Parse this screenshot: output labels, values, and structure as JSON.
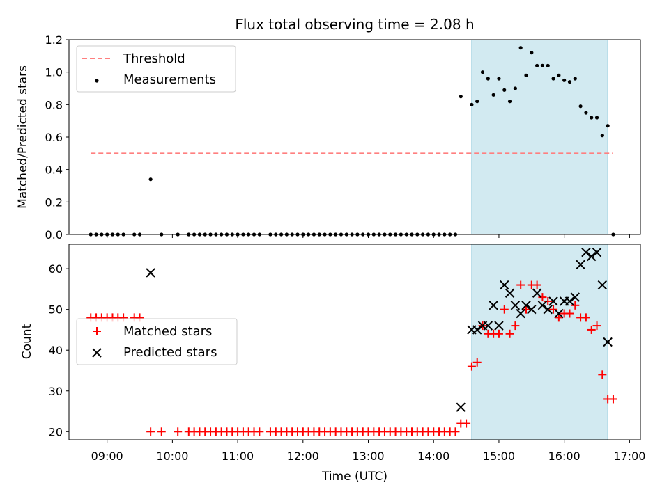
{
  "figure": {
    "title": "Flux total observing time = 2.08 h"
  },
  "chart_data": [
    {
      "type": "scatter",
      "ylabel": "Matched/Predicted stars",
      "xlabel": "",
      "ylim": [
        0,
        1.2
      ],
      "yticks": [
        0.0,
        0.2,
        0.4,
        0.6,
        0.8,
        1.0,
        1.2
      ],
      "xlim": [
        "08:25",
        "17:10"
      ],
      "xticks": [
        "09:00",
        "10:00",
        "11:00",
        "12:00",
        "13:00",
        "14:00",
        "15:00",
        "16:00",
        "17:00"
      ],
      "grid": false,
      "legend_position": "upper-left",
      "shaded_region": {
        "x": [
          "14:35",
          "16:40"
        ],
        "color": "#add8e6"
      },
      "series": [
        {
          "name": "Threshold",
          "style": "dashed-line",
          "color": "#ff7f7f",
          "points": [
            [
              "08:45",
              0.5
            ],
            [
              "16:45",
              0.5
            ]
          ]
        },
        {
          "name": "Measurements",
          "style": "dot",
          "color": "#000000",
          "points": [
            [
              "08:45",
              0.0
            ],
            [
              "08:50",
              0.0
            ],
            [
              "08:55",
              0.0
            ],
            [
              "09:00",
              0.0
            ],
            [
              "09:05",
              0.0
            ],
            [
              "09:10",
              0.0
            ],
            [
              "09:15",
              0.0
            ],
            [
              "09:25",
              0.0
            ],
            [
              "09:30",
              0.0
            ],
            [
              "09:40",
              0.34
            ],
            [
              "09:50",
              0.0
            ],
            [
              "10:05",
              0.0
            ],
            [
              "10:15",
              0.0
            ],
            [
              "10:20",
              0.0
            ],
            [
              "10:25",
              0.0
            ],
            [
              "10:30",
              0.0
            ],
            [
              "10:35",
              0.0
            ],
            [
              "10:40",
              0.0
            ],
            [
              "10:45",
              0.0
            ],
            [
              "10:50",
              0.0
            ],
            [
              "10:55",
              0.0
            ],
            [
              "11:00",
              0.0
            ],
            [
              "11:05",
              0.0
            ],
            [
              "11:10",
              0.0
            ],
            [
              "11:15",
              0.0
            ],
            [
              "11:20",
              0.0
            ],
            [
              "11:30",
              0.0
            ],
            [
              "11:35",
              0.0
            ],
            [
              "11:40",
              0.0
            ],
            [
              "11:45",
              0.0
            ],
            [
              "11:50",
              0.0
            ],
            [
              "11:55",
              0.0
            ],
            [
              "12:00",
              0.0
            ],
            [
              "12:05",
              0.0
            ],
            [
              "12:10",
              0.0
            ],
            [
              "12:15",
              0.0
            ],
            [
              "12:20",
              0.0
            ],
            [
              "12:25",
              0.0
            ],
            [
              "12:30",
              0.0
            ],
            [
              "12:35",
              0.0
            ],
            [
              "12:40",
              0.0
            ],
            [
              "12:45",
              0.0
            ],
            [
              "12:50",
              0.0
            ],
            [
              "12:55",
              0.0
            ],
            [
              "13:00",
              0.0
            ],
            [
              "13:05",
              0.0
            ],
            [
              "13:10",
              0.0
            ],
            [
              "13:15",
              0.0
            ],
            [
              "13:20",
              0.0
            ],
            [
              "13:25",
              0.0
            ],
            [
              "13:30",
              0.0
            ],
            [
              "13:35",
              0.0
            ],
            [
              "13:40",
              0.0
            ],
            [
              "13:45",
              0.0
            ],
            [
              "13:50",
              0.0
            ],
            [
              "13:55",
              0.0
            ],
            [
              "14:00",
              0.0
            ],
            [
              "14:05",
              0.0
            ],
            [
              "14:10",
              0.0
            ],
            [
              "14:15",
              0.0
            ],
            [
              "14:20",
              0.0
            ],
            [
              "14:25",
              0.85
            ],
            [
              "14:35",
              0.8
            ],
            [
              "14:40",
              0.82
            ],
            [
              "14:45",
              1.0
            ],
            [
              "14:50",
              0.96
            ],
            [
              "14:55",
              0.86
            ],
            [
              "15:00",
              0.96
            ],
            [
              "15:05",
              0.89
            ],
            [
              "15:10",
              0.82
            ],
            [
              "15:15",
              0.9
            ],
            [
              "15:20",
              1.15
            ],
            [
              "15:25",
              0.98
            ],
            [
              "15:30",
              1.12
            ],
            [
              "15:35",
              1.04
            ],
            [
              "15:40",
              1.04
            ],
            [
              "15:45",
              1.04
            ],
            [
              "15:50",
              0.96
            ],
            [
              "15:55",
              0.98
            ],
            [
              "16:00",
              0.95
            ],
            [
              "16:05",
              0.94
            ],
            [
              "16:10",
              0.96
            ],
            [
              "16:15",
              0.79
            ],
            [
              "16:20",
              0.75
            ],
            [
              "16:25",
              0.72
            ],
            [
              "16:30",
              0.72
            ],
            [
              "16:35",
              0.61
            ],
            [
              "16:40",
              0.67
            ],
            [
              "16:45",
              0.0
            ]
          ]
        }
      ]
    },
    {
      "type": "scatter",
      "ylabel": "Count",
      "xlabel": "Time (UTC)",
      "ylim": [
        18,
        66
      ],
      "yticks": [
        20,
        30,
        40,
        50,
        60
      ],
      "xlim": [
        "08:25",
        "17:10"
      ],
      "xticks": [
        "09:00",
        "10:00",
        "11:00",
        "12:00",
        "13:00",
        "14:00",
        "15:00",
        "16:00",
        "17:00"
      ],
      "grid": false,
      "legend_position": "center-left",
      "shaded_region": {
        "x": [
          "14:35",
          "16:40"
        ],
        "color": "#add8e6"
      },
      "series": [
        {
          "name": "Matched stars",
          "style": "plus",
          "color": "#ff0000",
          "points": [
            [
              "08:45",
              48
            ],
            [
              "08:50",
              48
            ],
            [
              "08:55",
              48
            ],
            [
              "09:00",
              48
            ],
            [
              "09:05",
              48
            ],
            [
              "09:10",
              48
            ],
            [
              "09:15",
              48
            ],
            [
              "09:25",
              48
            ],
            [
              "09:30",
              48
            ],
            [
              "09:40",
              20
            ],
            [
              "09:50",
              20
            ],
            [
              "10:05",
              20
            ],
            [
              "10:15",
              20
            ],
            [
              "10:20",
              20
            ],
            [
              "10:25",
              20
            ],
            [
              "10:30",
              20
            ],
            [
              "10:35",
              20
            ],
            [
              "10:40",
              20
            ],
            [
              "10:45",
              20
            ],
            [
              "10:50",
              20
            ],
            [
              "10:55",
              20
            ],
            [
              "11:00",
              20
            ],
            [
              "11:05",
              20
            ],
            [
              "11:10",
              20
            ],
            [
              "11:15",
              20
            ],
            [
              "11:20",
              20
            ],
            [
              "11:30",
              20
            ],
            [
              "11:35",
              20
            ],
            [
              "11:40",
              20
            ],
            [
              "11:45",
              20
            ],
            [
              "11:50",
              20
            ],
            [
              "11:55",
              20
            ],
            [
              "12:00",
              20
            ],
            [
              "12:05",
              20
            ],
            [
              "12:10",
              20
            ],
            [
              "12:15",
              20
            ],
            [
              "12:20",
              20
            ],
            [
              "12:25",
              20
            ],
            [
              "12:30",
              20
            ],
            [
              "12:35",
              20
            ],
            [
              "12:40",
              20
            ],
            [
              "12:45",
              20
            ],
            [
              "12:50",
              20
            ],
            [
              "12:55",
              20
            ],
            [
              "13:00",
              20
            ],
            [
              "13:05",
              20
            ],
            [
              "13:10",
              20
            ],
            [
              "13:15",
              20
            ],
            [
              "13:20",
              20
            ],
            [
              "13:25",
              20
            ],
            [
              "13:30",
              20
            ],
            [
              "13:35",
              20
            ],
            [
              "13:40",
              20
            ],
            [
              "13:45",
              20
            ],
            [
              "13:50",
              20
            ],
            [
              "13:55",
              20
            ],
            [
              "14:00",
              20
            ],
            [
              "14:05",
              20
            ],
            [
              "14:10",
              20
            ],
            [
              "14:15",
              20
            ],
            [
              "14:20",
              20
            ],
            [
              "14:25",
              22
            ],
            [
              "14:30",
              22
            ],
            [
              "14:35",
              36
            ],
            [
              "14:40",
              37
            ],
            [
              "14:45",
              46
            ],
            [
              "14:50",
              44
            ],
            [
              "14:55",
              44
            ],
            [
              "15:00",
              44
            ],
            [
              "15:05",
              50
            ],
            [
              "15:10",
              44
            ],
            [
              "15:15",
              46
            ],
            [
              "15:20",
              56
            ],
            [
              "15:25",
              50
            ],
            [
              "15:30",
              56
            ],
            [
              "15:35",
              56
            ],
            [
              "15:40",
              53
            ],
            [
              "15:45",
              52
            ],
            [
              "15:50",
              50
            ],
            [
              "15:55",
              48
            ],
            [
              "16:00",
              49
            ],
            [
              "16:05",
              49
            ],
            [
              "16:10",
              51
            ],
            [
              "16:15",
              48
            ],
            [
              "16:20",
              48
            ],
            [
              "16:25",
              45
            ],
            [
              "16:30",
              46
            ],
            [
              "16:35",
              34
            ],
            [
              "16:40",
              28
            ],
            [
              "16:45",
              28
            ]
          ]
        },
        {
          "name": "Predicted stars",
          "style": "x",
          "color": "#000000",
          "points": [
            [
              "09:40",
              59
            ],
            [
              "14:25",
              26
            ],
            [
              "14:35",
              45
            ],
            [
              "14:40",
              45
            ],
            [
              "14:45",
              46
            ],
            [
              "14:50",
              46
            ],
            [
              "14:55",
              51
            ],
            [
              "15:00",
              46
            ],
            [
              "15:05",
              56
            ],
            [
              "15:10",
              54
            ],
            [
              "15:15",
              51
            ],
            [
              "15:20",
              49
            ],
            [
              "15:25",
              51
            ],
            [
              "15:30",
              50
            ],
            [
              "15:35",
              54
            ],
            [
              "15:40",
              51
            ],
            [
              "15:45",
              50
            ],
            [
              "15:50",
              52
            ],
            [
              "15:55",
              49
            ],
            [
              "16:00",
              52
            ],
            [
              "16:05",
              52
            ],
            [
              "16:10",
              53
            ],
            [
              "16:15",
              61
            ],
            [
              "16:20",
              64
            ],
            [
              "16:25",
              63
            ],
            [
              "16:30",
              64
            ],
            [
              "16:35",
              56
            ],
            [
              "16:40",
              42
            ]
          ]
        }
      ]
    }
  ]
}
